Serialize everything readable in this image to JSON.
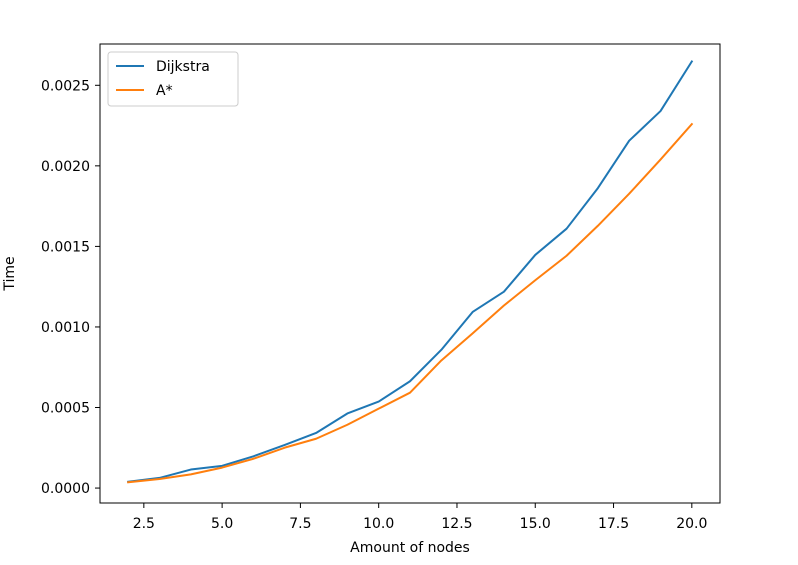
{
  "chart_data": {
    "type": "line",
    "title": "",
    "xlabel": "Amount of nodes",
    "ylabel": "Time",
    "xlim": [
      1.1,
      20.9
    ],
    "ylim": [
      -9.27e-05,
      0.0027563
    ],
    "x_ticks": [
      2.5,
      5.0,
      7.5,
      10.0,
      12.5,
      15.0,
      17.5,
      20.0
    ],
    "x_tick_labels": [
      "2.5",
      "5.0",
      "7.5",
      "10.0",
      "12.5",
      "15.0",
      "17.5",
      "20.0"
    ],
    "y_ticks": [
      0.0,
      0.0005,
      0.001,
      0.0015,
      0.002,
      0.0025
    ],
    "y_tick_labels": [
      "0.0000",
      "0.0005",
      "0.0010",
      "0.0015",
      "0.0020",
      "0.0025"
    ],
    "x": [
      2,
      3,
      4,
      5,
      6,
      7,
      8,
      9,
      10,
      11,
      12,
      13,
      14,
      15,
      16,
      17,
      18,
      19,
      20
    ],
    "series": [
      {
        "name": "Dijkstra",
        "color": "#1f77b4",
        "values": [
          3.9e-05,
          6.3e-05,
          0.000115,
          0.000138,
          0.000197,
          0.000268,
          0.000342,
          0.000463,
          0.000537,
          0.000663,
          0.000858,
          0.001093,
          0.001219,
          0.001447,
          0.00161,
          0.001862,
          0.002156,
          0.00234,
          0.002648
        ]
      },
      {
        "name": "A*",
        "color": "#ff7f0e",
        "values": [
          3.6e-05,
          5.6e-05,
          8.5e-05,
          0.000127,
          0.000182,
          0.000251,
          0.000306,
          0.000393,
          0.000493,
          0.000592,
          0.000792,
          0.00096,
          0.001133,
          0.00129,
          0.001442,
          0.001628,
          0.001827,
          0.002039,
          0.002259
        ]
      }
    ],
    "grid": false,
    "legend_position": "upper-left"
  }
}
